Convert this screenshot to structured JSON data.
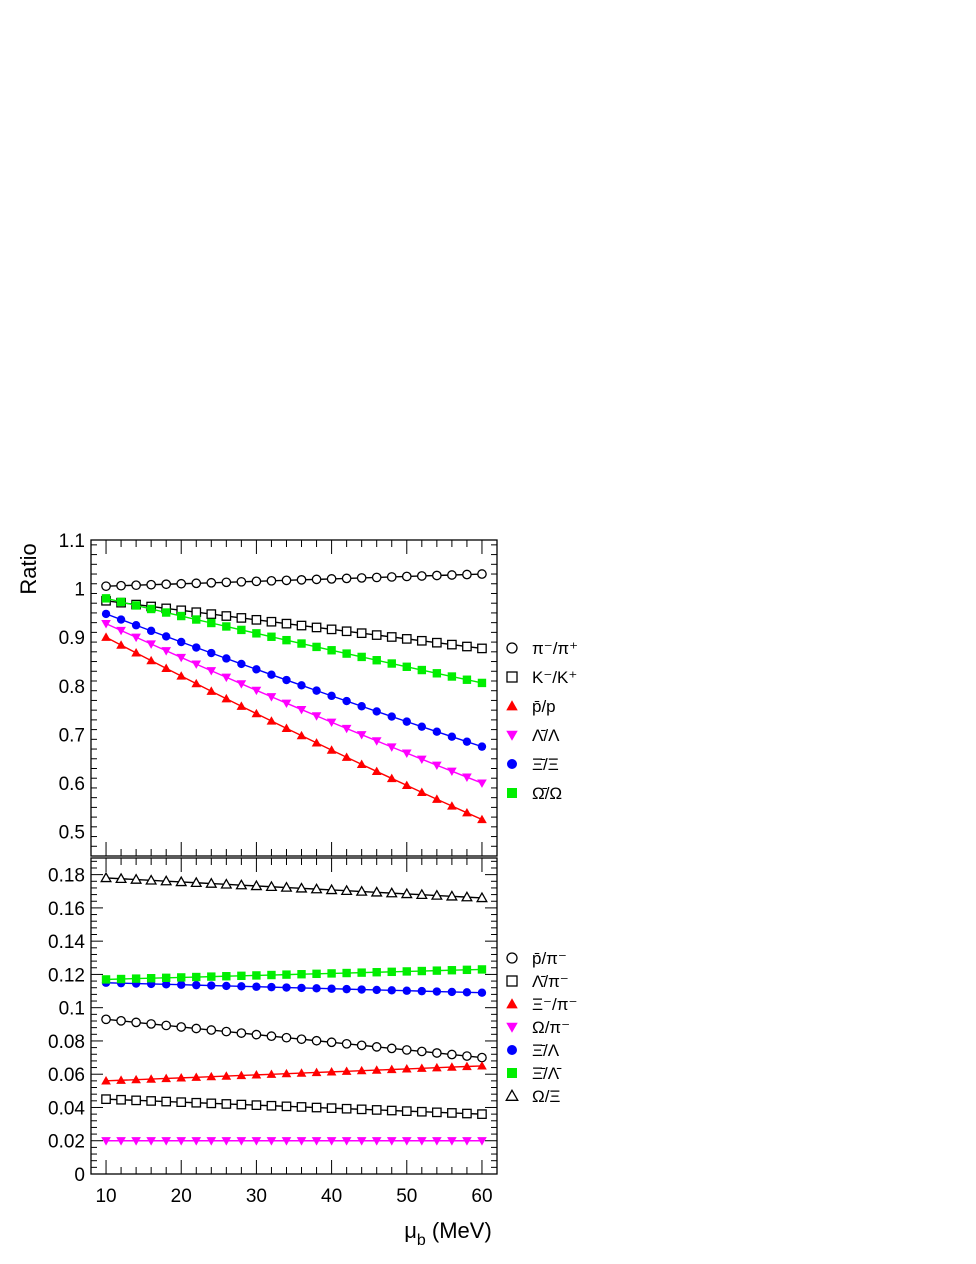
{
  "chart_data": [
    {
      "type": "scatter",
      "panel": "top",
      "ylabel": "Ratio",
      "xlim": [
        8,
        62
      ],
      "ylim": [
        0.45,
        1.1
      ],
      "yticks": [
        "0.5",
        "0.6",
        "0.7",
        "0.8",
        "0.9",
        "1",
        "1.1"
      ],
      "legend_position": "right",
      "x": [
        10,
        12,
        14,
        16,
        18,
        20,
        22,
        24,
        26,
        28,
        30,
        32,
        34,
        36,
        38,
        40,
        42,
        44,
        46,
        48,
        50,
        52,
        54,
        56,
        58,
        60
      ],
      "series": [
        {
          "name": "π⁻/π⁺",
          "marker": "open-circle",
          "color": "#000000",
          "y0": 1.005,
          "y1": 1.03,
          "curv": 0
        },
        {
          "name": "K⁻/K⁺",
          "marker": "open-square",
          "color": "#000000",
          "y0": 0.975,
          "y1": 0.877,
          "curv": 0
        },
        {
          "name": "p̄/p",
          "marker": "triangle-up",
          "color": "#ff0000",
          "y0": 0.9,
          "y1": 0.525,
          "curv": 0.03
        },
        {
          "name": "Λ̄/Λ",
          "marker": "triangle-down",
          "color": "#ff00ff",
          "y0": 0.928,
          "y1": 0.6,
          "curv": 0.025
        },
        {
          "name": "Ξ̄/Ξ",
          "marker": "circle",
          "color": "#0000ff",
          "y0": 0.948,
          "y1": 0.675,
          "curv": 0.02
        },
        {
          "name": "Ω̄/Ω",
          "marker": "square",
          "color": "#00ee00",
          "y0": 0.98,
          "y1": 0.806,
          "curv": 0.01
        }
      ]
    },
    {
      "type": "scatter",
      "panel": "bottom",
      "xlabel": "μb (MeV)",
      "xlim": [
        8,
        62
      ],
      "ylim": [
        0,
        0.19
      ],
      "yticks": [
        "0",
        "0.02",
        "0.04",
        "0.06",
        "0.08",
        "0.1",
        "0.12",
        "0.14",
        "0.16",
        "0.18"
      ],
      "xticks": [
        "10",
        "20",
        "30",
        "40",
        "50",
        "60"
      ],
      "legend_position": "right",
      "x": [
        10,
        12,
        14,
        16,
        18,
        20,
        22,
        24,
        26,
        28,
        30,
        32,
        34,
        36,
        38,
        40,
        42,
        44,
        46,
        48,
        50,
        52,
        54,
        56,
        58,
        60
      ],
      "series": [
        {
          "name": "p̄/π⁻",
          "marker": "open-circle",
          "color": "#000000",
          "y0": 0.093,
          "y1": 0.07,
          "curv": 0
        },
        {
          "name": "Λ̄/π⁻",
          "marker": "open-square",
          "color": "#000000",
          "y0": 0.045,
          "y1": 0.036,
          "curv": 0
        },
        {
          "name": "Ξ⁻/π⁻",
          "marker": "triangle-up",
          "color": "#ff0000",
          "y0": 0.056,
          "y1": 0.065,
          "curv": 0
        },
        {
          "name": "Ω/π⁻",
          "marker": "triangle-down",
          "color": "#ff00ff",
          "y0": 0.02,
          "y1": 0.02,
          "curv": 0
        },
        {
          "name": "Ξ̄/Λ",
          "marker": "circle",
          "color": "#0000ff",
          "y0": 0.115,
          "y1": 0.109,
          "curv": 0
        },
        {
          "name": "Ξ̄/Λ̄",
          "marker": "square",
          "color": "#00ee00",
          "y0": 0.117,
          "y1": 0.123,
          "curv": 0
        },
        {
          "name": "Ω/Ξ",
          "marker": "open-triangle",
          "color": "#000000",
          "y0": 0.178,
          "y1": 0.166,
          "curv": 0
        }
      ]
    }
  ]
}
